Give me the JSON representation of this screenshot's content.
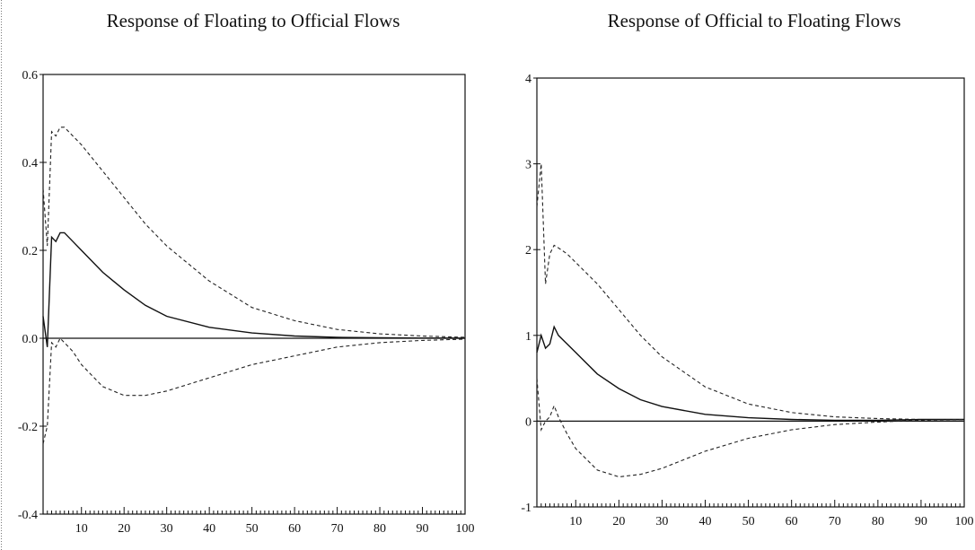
{
  "chart_data": [
    {
      "type": "line",
      "title": "Response of Floating to Official Flows",
      "xlim": [
        1,
        100
      ],
      "ylim": [
        -0.4,
        0.6
      ],
      "x_ticks": [
        10,
        20,
        30,
        40,
        50,
        60,
        70,
        80,
        90,
        100
      ],
      "x_tick_labels": [
        "10",
        "20",
        "30",
        "40",
        "50",
        "60",
        "70",
        "80",
        "90",
        "100"
      ],
      "y_ticks": [
        -0.4,
        -0.2,
        0.0,
        0.2,
        0.4,
        0.6
      ],
      "y_tick_labels": [
        "-0.4",
        "-0.2",
        "0.0",
        "0.2",
        "0.4",
        "0.6"
      ],
      "zero_line": true,
      "grid": false,
      "legend": false,
      "series": [
        {
          "style": "dashed",
          "x": [
            1,
            2,
            3,
            4,
            5,
            6,
            8,
            10,
            15,
            20,
            25,
            30,
            40,
            50,
            60,
            70,
            80,
            90,
            100
          ],
          "y": [
            0.34,
            0.21,
            0.47,
            0.46,
            0.48,
            0.48,
            0.46,
            0.44,
            0.38,
            0.32,
            0.26,
            0.21,
            0.13,
            0.07,
            0.04,
            0.02,
            0.01,
            0.005,
            0.002
          ]
        },
        {
          "style": "solid",
          "x": [
            1,
            2,
            3,
            4,
            5,
            6,
            8,
            10,
            15,
            20,
            25,
            30,
            40,
            50,
            60,
            70,
            80,
            90,
            100
          ],
          "y": [
            0.05,
            -0.02,
            0.23,
            0.22,
            0.24,
            0.24,
            0.22,
            0.2,
            0.15,
            0.11,
            0.075,
            0.05,
            0.025,
            0.012,
            0.005,
            0.002,
            0.001,
            0.0005,
            0.0002
          ]
        },
        {
          "style": "dashed",
          "x": [
            1,
            2,
            3,
            4,
            5,
            6,
            8,
            10,
            15,
            20,
            25,
            30,
            40,
            50,
            60,
            70,
            80,
            90,
            100
          ],
          "y": [
            -0.24,
            -0.2,
            -0.01,
            -0.02,
            0.0,
            -0.01,
            -0.03,
            -0.06,
            -0.11,
            -0.13,
            -0.13,
            -0.12,
            -0.09,
            -0.06,
            -0.04,
            -0.02,
            -0.01,
            -0.005,
            -0.002
          ]
        }
      ]
    },
    {
      "type": "line",
      "title": "Response of Official to Floating Flows",
      "xlim": [
        1,
        100
      ],
      "ylim": [
        -1,
        4
      ],
      "x_ticks": [
        10,
        20,
        30,
        40,
        50,
        60,
        70,
        80,
        90,
        100
      ],
      "x_tick_labels": [
        "10",
        "20",
        "30",
        "40",
        "50",
        "60",
        "70",
        "80",
        "90",
        "100"
      ],
      "y_ticks": [
        -1,
        0,
        1,
        2,
        3,
        4
      ],
      "y_tick_labels": [
        "-1",
        "0",
        "1",
        "2",
        "3",
        "4"
      ],
      "zero_line": true,
      "grid": false,
      "legend": false,
      "series": [
        {
          "style": "dashed",
          "x": [
            1,
            2,
            3,
            4,
            5,
            6,
            8,
            10,
            15,
            20,
            25,
            30,
            40,
            50,
            60,
            70,
            80,
            90,
            100
          ],
          "y": [
            2.5,
            3.0,
            1.6,
            1.95,
            2.05,
            2.02,
            1.95,
            1.85,
            1.6,
            1.3,
            1.0,
            0.75,
            0.4,
            0.2,
            0.1,
            0.05,
            0.03,
            0.02,
            0.02
          ]
        },
        {
          "style": "solid",
          "x": [
            1,
            2,
            3,
            4,
            5,
            6,
            8,
            10,
            15,
            20,
            25,
            30,
            40,
            50,
            60,
            70,
            80,
            90,
            100
          ],
          "y": [
            0.8,
            1.0,
            0.85,
            0.9,
            1.1,
            1.0,
            0.9,
            0.8,
            0.55,
            0.38,
            0.25,
            0.17,
            0.08,
            0.04,
            0.02,
            0.01,
            0.01,
            0.02,
            0.02
          ]
        },
        {
          "style": "dashed",
          "x": [
            1,
            2,
            3,
            4,
            5,
            6,
            8,
            10,
            15,
            20,
            25,
            30,
            40,
            50,
            60,
            70,
            80,
            90,
            100
          ],
          "y": [
            0.5,
            -0.1,
            0.0,
            0.05,
            0.18,
            0.05,
            -0.15,
            -0.32,
            -0.57,
            -0.65,
            -0.62,
            -0.55,
            -0.35,
            -0.2,
            -0.1,
            -0.04,
            -0.01,
            0.01,
            0.02
          ]
        }
      ]
    }
  ]
}
